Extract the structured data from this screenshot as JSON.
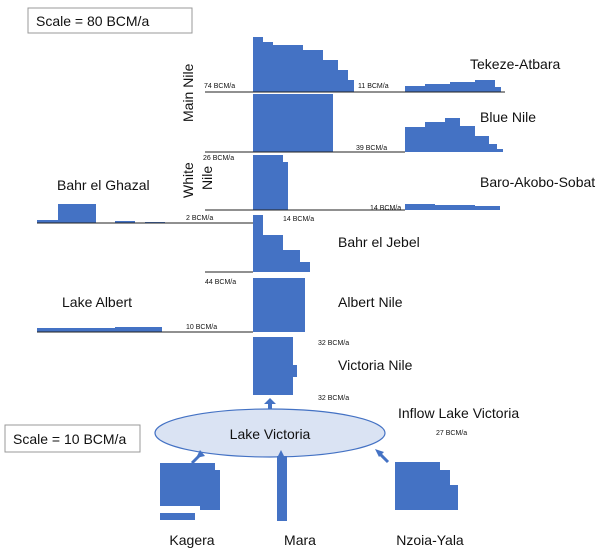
{
  "scales": {
    "large": "Scale = 80 BCM/a",
    "small": "Scale = 10 BCM/a"
  },
  "rivers": {
    "main_nile": "Main Nile",
    "white_nile": [
      "White",
      "Nile"
    ],
    "tekeze_atbara": "Tekeze-Atbara",
    "blue_nile": "Blue Nile",
    "baro_akobo_sobat": "Baro-Akobo-Sobat",
    "bahr_el_ghazal": "Bahr el Ghazal",
    "bahr_el_jebel": "Bahr el Jebel",
    "albert_nile": "Albert Nile",
    "lake_albert": "Lake Albert",
    "victoria_nile": "Victoria Nile",
    "inflow_lake_victoria": "Inflow Lake Victoria",
    "lake_victoria": "Lake Victoria",
    "kagera": "Kagera",
    "mara": "Mara",
    "nzoia_yala": "Nzoia-Yala"
  },
  "flows": {
    "main_nile": "74 BCM/a",
    "tekeze_atbara": "11 BCM/a",
    "blue_nile": "39 BCM/a",
    "white_nile": "26 BCM/a",
    "baro_akobo_sobat": "14 BCM/a",
    "bahr_el_ghazal": "2 BCM/a",
    "bahr_el_jebel_in": "14 BCM/a",
    "bahr_el_jebel": "44 BCM/a",
    "lake_albert": "10 BCM/a",
    "albert_nile": "32 BCM/a",
    "victoria_nile": "32 BCM/a",
    "inflow_lake_victoria": "27 BCM/a"
  }
}
